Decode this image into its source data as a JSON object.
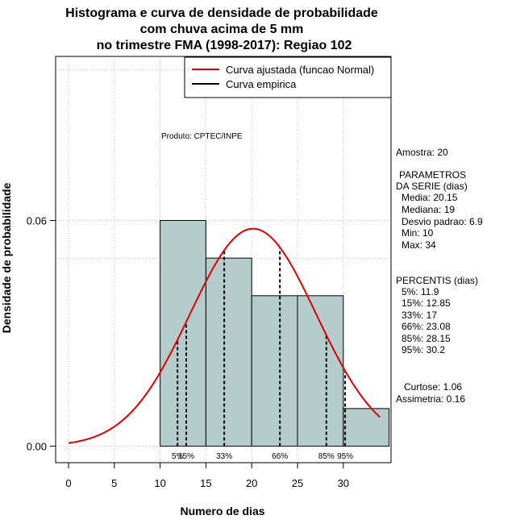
{
  "chart_data": {
    "type": "bar",
    "title_lines": [
      "Histograma e curva de densidade de probabilidade",
      "com chuva acima de 5 mm",
      "no trimestre FMA (1998-2017): Regiao 102"
    ],
    "xlabel": "Numero de dias",
    "ylabel": "Densidade de probabilidade",
    "xlim": [
      -1.5,
      35
    ],
    "ylim": [
      -0.004,
      0.1
    ],
    "x_ticks": [
      0,
      5,
      10,
      15,
      20,
      25,
      30
    ],
    "x_tick_labels": [
      "0",
      "5",
      "10",
      "15",
      "20",
      "25",
      "30"
    ],
    "y_ticks": [
      0.0,
      0.06
    ],
    "y_tick_labels": [
      "0.00",
      "0.06"
    ],
    "grid_x": [
      0,
      5,
      10,
      15,
      20,
      25,
      30
    ],
    "grid_y": [
      0,
      0.05,
      0.06,
      0.1
    ],
    "histogram": {
      "bin_edges": [
        10,
        15,
        20,
        25,
        30,
        35
      ],
      "densities": [
        0.06,
        0.05,
        0.04,
        0.04,
        0.01
      ],
      "fill": "#b5cccc"
    },
    "normal_curve": {
      "name": "Curva ajustada (funcao Normal)",
      "mean": 20.15,
      "sd": 6.9,
      "x_range": [
        0,
        34
      ],
      "color": "#e00000"
    },
    "legend": {
      "position": "top-right",
      "entries": [
        {
          "label": "Curva ajustada (funcao Normal)",
          "color": "#e00000"
        },
        {
          "label": "Curva empirica",
          "color": "#000000"
        }
      ]
    },
    "percentile_lines": [
      {
        "label": "5%",
        "x": 11.9
      },
      {
        "label": "15%",
        "x": 12.85
      },
      {
        "label": "33%",
        "x": 17
      },
      {
        "label": "66%",
        "x": 23.08
      },
      {
        "label": "85%",
        "x": 28.15
      },
      {
        "label": "95%",
        "x": 30.2
      }
    ],
    "annotation": "Produto: CPTEC/INPE"
  },
  "side_panel": {
    "amostra": "Amostra: 20",
    "parametros_title": "PARAMETROS",
    "serie_title": "DA SERIE (dias)",
    "media": "Media: 20.15",
    "mediana": "Mediana: 19",
    "desvio": "Desvio padrao: 6.9",
    "min": "Min: 10",
    "max": "Max: 34",
    "percentis_title": "PERCENTIS (dias)",
    "p5": "5%: 11.9",
    "p15": "15%: 12.85",
    "p33": "33%: 17",
    "p66": "66%: 23.08",
    "p85": "85%: 28.15",
    "p95": "95%: 30.2",
    "curtose": "Curtose: 1.06",
    "assimetria": "Assimetria: 0.16"
  }
}
